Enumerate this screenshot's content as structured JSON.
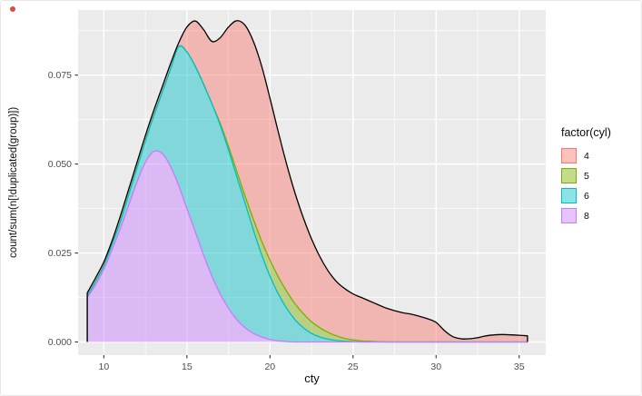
{
  "figure": {
    "background": "#FFFFFF",
    "panel_background": "#EBEBEB",
    "grid_color": "#FFFFFF",
    "tick_color": "#333333"
  },
  "axes": {
    "x_title": "cty",
    "y_title": "count/sum(n[!duplicated(group)])",
    "x_ticks": [
      "10",
      "15",
      "20",
      "25",
      "30",
      "35"
    ],
    "y_ticks": [
      "0.000",
      "0.025",
      "0.050",
      "0.075"
    ],
    "tick_label_color": "#4D4D4D",
    "title_color": "#0a0a0a"
  },
  "legend": {
    "title": "factor(cyl)",
    "items": [
      {
        "label": "4",
        "stroke": "#F8766D",
        "fill": "rgba(248,118,109,0.45)"
      },
      {
        "label": "5",
        "stroke": "#7CAE00",
        "fill": "rgba(124,174,0,0.45)"
      },
      {
        "label": "6",
        "stroke": "#00BFC4",
        "fill": "rgba(0,191,196,0.45)"
      },
      {
        "label": "8",
        "stroke": "#C77CFF",
        "fill": "rgba(199,124,255,0.45)"
      }
    ]
  },
  "chart_data": {
    "type": "area",
    "stacked": true,
    "title": "",
    "xlabel": "cty",
    "ylabel": "count/sum(n[!duplicated(group)])",
    "legend_title": "factor(cyl)",
    "legend_position": "right",
    "grid": true,
    "xlim": [
      8.45,
      36.6
    ],
    "ylim": [
      -0.0037,
      0.0933
    ],
    "x_major": [
      10,
      15,
      20,
      25,
      30,
      35
    ],
    "x_minor": [
      12.5,
      17.5,
      22.5,
      27.5,
      32.5
    ],
    "y_major": [
      0,
      0.025,
      0.05,
      0.075
    ],
    "y_minor": [
      0.0125,
      0.0375,
      0.0625,
      0.0875
    ],
    "x": [
      9,
      9.5,
      10,
      10.5,
      11,
      11.5,
      12,
      12.5,
      13,
      13.5,
      14,
      14.5,
      15,
      15.5,
      16,
      16.5,
      17,
      17.5,
      18,
      18.5,
      19,
      19.5,
      20,
      20.5,
      21,
      21.5,
      22,
      22.5,
      23,
      23.5,
      24,
      24.5,
      25,
      25.5,
      26,
      26.5,
      27,
      27.5,
      28,
      28.5,
      29,
      29.5,
      30,
      30.5,
      31,
      31.5,
      32,
      32.5,
      33,
      33.5,
      34,
      34.5,
      35,
      35.5
    ],
    "series": [
      {
        "name": "8",
        "stroke": "#C77CFF",
        "fill": "rgba(199,124,255,0.45)",
        "top": [
          0.0125,
          0.016,
          0.0205,
          0.026,
          0.032,
          0.0385,
          0.045,
          0.0505,
          0.0535,
          0.053,
          0.0495,
          0.044,
          0.0375,
          0.031,
          0.0245,
          0.0185,
          0.0135,
          0.0095,
          0.0063,
          0.004,
          0.0024,
          0.0014,
          0.0007,
          0.0003,
          0.0001,
          0,
          0,
          0,
          0,
          0,
          0,
          0,
          0,
          0,
          0,
          0,
          0,
          0,
          0,
          0,
          0,
          0,
          0,
          0,
          0,
          0,
          0,
          0,
          0,
          0,
          0,
          0,
          0,
          0
        ]
      },
      {
        "name": "6",
        "stroke": "#00BFC4",
        "fill": "rgba(0,191,196,0.45)",
        "top": [
          0.013,
          0.017,
          0.0215,
          0.0275,
          0.034,
          0.0415,
          0.049,
          0.0565,
          0.0635,
          0.07,
          0.0765,
          0.083,
          0.0815,
          0.0775,
          0.0725,
          0.067,
          0.061,
          0.054,
          0.0465,
          0.039,
          0.0315,
          0.0245,
          0.0185,
          0.0135,
          0.0095,
          0.0063,
          0.004,
          0.0024,
          0.0014,
          0.0008,
          0.0004,
          0.0002,
          0.0001,
          0,
          0,
          0,
          0,
          0,
          0,
          0,
          0,
          0,
          0,
          0,
          0,
          0,
          0,
          0,
          0,
          0,
          0,
          0,
          0,
          0
        ]
      },
      {
        "name": "5",
        "stroke": "#7CAE00",
        "fill": "rgba(124,174,0,0.45)",
        "top": [
          0.013,
          0.017,
          0.0215,
          0.0275,
          0.034,
          0.0415,
          0.049,
          0.0565,
          0.0635,
          0.07,
          0.0765,
          0.083,
          0.0815,
          0.0775,
          0.0725,
          0.067,
          0.0615,
          0.055,
          0.048,
          0.041,
          0.0345,
          0.0283,
          0.023,
          0.0183,
          0.0143,
          0.0108,
          0.008,
          0.0057,
          0.004,
          0.0027,
          0.0017,
          0.001,
          0.0006,
          0.0003,
          0.0002,
          0.0001,
          0,
          0,
          0,
          0,
          0,
          0,
          0,
          0,
          0,
          0,
          0,
          0,
          0,
          0,
          0,
          0,
          0,
          0
        ]
      },
      {
        "name": "4",
        "stroke": "#000000",
        "fill": "rgba(248,118,109,0.45)",
        "top": [
          0.0138,
          0.018,
          0.0225,
          0.0285,
          0.0355,
          0.043,
          0.0505,
          0.058,
          0.065,
          0.0715,
          0.078,
          0.084,
          0.0885,
          0.0902,
          0.0878,
          0.0845,
          0.0855,
          0.0885,
          0.0903,
          0.089,
          0.0845,
          0.0775,
          0.0685,
          0.059,
          0.05,
          0.042,
          0.035,
          0.029,
          0.024,
          0.02,
          0.017,
          0.015,
          0.0135,
          0.0125,
          0.0115,
          0.0105,
          0.0095,
          0.0088,
          0.0082,
          0.0078,
          0.0072,
          0.0065,
          0.0055,
          0.0032,
          0.0015,
          0.0009,
          0.0009,
          0.0012,
          0.0017,
          0.002,
          0.0021,
          0.002,
          0.0019,
          0.0017
        ]
      }
    ]
  }
}
